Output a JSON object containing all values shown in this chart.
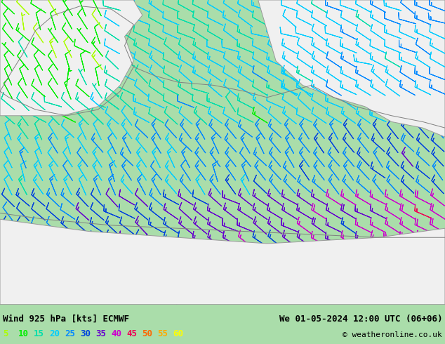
{
  "title_left": "Wind 925 hPa [kts] ECMWF",
  "title_right": "We 01-05-2024 12:00 UTC (06+06)",
  "copyright": "© weatheronline.co.uk",
  "legend_values": [
    5,
    10,
    15,
    20,
    25,
    30,
    35,
    40,
    45,
    50,
    55,
    60
  ],
  "legend_colors": [
    "#aaff00",
    "#00ee00",
    "#00ddaa",
    "#00ccff",
    "#0088ff",
    "#0044dd",
    "#6600cc",
    "#cc00cc",
    "#ee0055",
    "#ff6600",
    "#ffaa00",
    "#ffff00"
  ],
  "sea_color": "#aaddaa",
  "land_color": "#f0f0f0",
  "fig_bg": "#aaddaa",
  "figsize": [
    6.34,
    4.9
  ],
  "dpi": 100,
  "bottom_bar_color": "#bbeeaa",
  "speed_thresholds": [
    8,
    13,
    18,
    23,
    28,
    33,
    38,
    43,
    48,
    53,
    58
  ],
  "speed_colors": [
    "#aaff00",
    "#00ee00",
    "#00ddaa",
    "#00ccff",
    "#0088ff",
    "#0044dd",
    "#6600cc",
    "#cc00cc",
    "#ee0055",
    "#ff6600",
    "#ffaa00",
    "#ffff00"
  ]
}
